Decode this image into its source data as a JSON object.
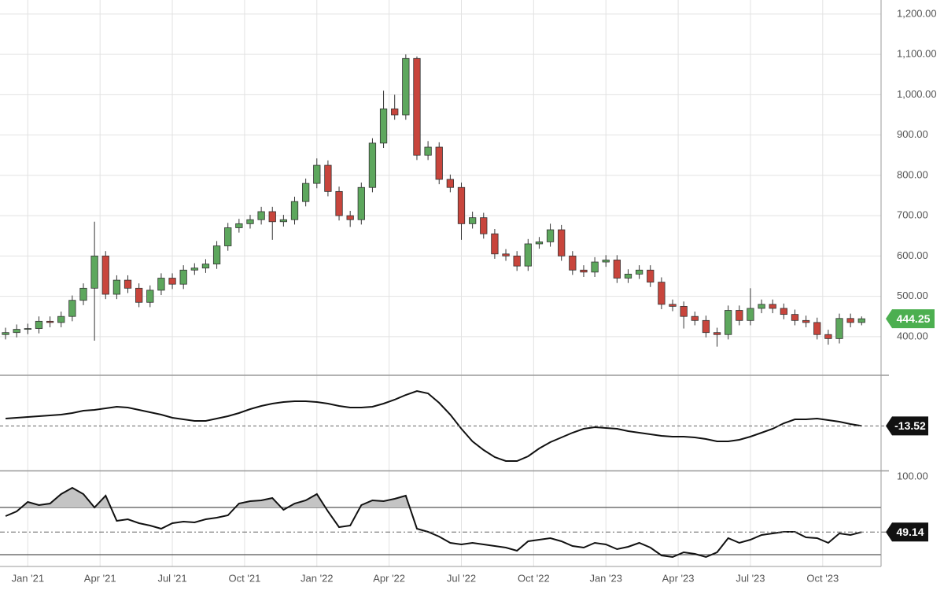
{
  "chart_data": [
    {
      "type": "candlestick",
      "x": [
        -4,
        -2,
        0,
        2,
        4,
        6,
        8,
        10,
        12,
        14,
        16,
        18,
        20,
        22,
        24,
        26,
        28,
        30,
        32,
        34,
        36,
        38,
        40,
        42,
        44,
        46,
        48,
        50,
        52,
        54,
        56,
        58,
        60,
        62,
        64,
        66,
        68,
        70,
        72,
        74,
        76,
        78,
        80,
        82,
        84,
        86,
        88,
        90,
        92,
        94,
        96,
        98,
        100,
        102,
        104,
        106,
        108,
        110,
        112,
        114,
        116,
        118,
        120,
        122,
        124,
        126,
        128,
        130,
        132,
        134,
        136,
        138,
        140,
        142,
        144,
        146,
        148,
        150
      ],
      "open": [
        405,
        410,
        418,
        420,
        438,
        435,
        450,
        490,
        520,
        600,
        505,
        540,
        520,
        485,
        515,
        545,
        530,
        565,
        570,
        580,
        625,
        670,
        680,
        690,
        710,
        685,
        690,
        735,
        780,
        825,
        760,
        700,
        690,
        770,
        880,
        965,
        950,
        1090,
        850,
        870,
        790,
        770,
        680,
        695,
        655,
        605,
        600,
        575,
        630,
        635,
        665,
        600,
        565,
        560,
        585,
        590,
        545,
        555,
        565,
        535,
        480,
        475,
        450,
        440,
        410,
        405,
        465,
        440,
        470,
        480,
        470,
        455,
        440,
        435,
        405,
        395,
        445,
        435
      ],
      "high": [
        422,
        430,
        432,
        450,
        450,
        462,
        502,
        532,
        685,
        612,
        552,
        552,
        532,
        527,
        557,
        557,
        577,
        582,
        592,
        637,
        682,
        692,
        702,
        722,
        722,
        702,
        747,
        792,
        842,
        837,
        772,
        712,
        782,
        892,
        1010,
        1000,
        1100,
        1095,
        885,
        882,
        802,
        782,
        710,
        707,
        667,
        617,
        612,
        642,
        647,
        680,
        677,
        612,
        577,
        597,
        602,
        602,
        567,
        577,
        577,
        547,
        492,
        487,
        462,
        452,
        422,
        477,
        477,
        520,
        492,
        492,
        482,
        467,
        452,
        447,
        417,
        457,
        457,
        450
      ],
      "low": [
        393,
        398,
        406,
        408,
        423,
        423,
        438,
        478,
        390,
        493,
        493,
        508,
        473,
        473,
        503,
        518,
        518,
        553,
        558,
        568,
        613,
        658,
        668,
        678,
        640,
        673,
        678,
        723,
        768,
        748,
        688,
        672,
        678,
        758,
        868,
        938,
        938,
        838,
        838,
        778,
        758,
        640,
        668,
        643,
        593,
        588,
        563,
        563,
        618,
        623,
        588,
        553,
        548,
        548,
        573,
        533,
        533,
        543,
        523,
        468,
        463,
        420,
        428,
        398,
        375,
        393,
        428,
        428,
        458,
        458,
        443,
        428,
        423,
        393,
        380,
        383,
        423,
        428
      ],
      "close": [
        410,
        418,
        420,
        438,
        435,
        450,
        490,
        520,
        600,
        505,
        540,
        520,
        485,
        515,
        545,
        530,
        565,
        570,
        580,
        625,
        670,
        680,
        690,
        710,
        685,
        690,
        735,
        780,
        825,
        760,
        700,
        690,
        770,
        880,
        965,
        950,
        1090,
        850,
        870,
        790,
        770,
        680,
        695,
        655,
        605,
        600,
        575,
        630,
        635,
        665,
        600,
        565,
        560,
        585,
        590,
        545,
        555,
        565,
        535,
        480,
        475,
        450,
        440,
        410,
        405,
        465,
        440,
        470,
        480,
        470,
        455,
        440,
        435,
        405,
        395,
        445,
        435,
        444.25
      ],
      "color_up": "#5da75d",
      "color_down": "#c8453c",
      "tag_color": "#4caf50",
      "ylim": [
        304,
        1235
      ],
      "yticks": [
        {
          "value": 400,
          "label": "400.00"
        },
        {
          "value": 500,
          "label": "500.00"
        },
        {
          "value": 600,
          "label": "600.00"
        },
        {
          "value": 700,
          "label": "700.00"
        },
        {
          "value": 800,
          "label": "800.00"
        },
        {
          "value": 900,
          "label": "900.00"
        },
        {
          "value": 1000,
          "label": "1,000.00"
        },
        {
          "value": 1100,
          "label": "1,100.00"
        },
        {
          "value": 1200,
          "label": "1,200.00"
        }
      ],
      "xlim": [
        -5,
        153.5
      ],
      "xticks": [
        {
          "value": 0,
          "label": "Jan '21"
        },
        {
          "value": 13,
          "label": "Apr '21"
        },
        {
          "value": 26,
          "label": "Jul '21"
        },
        {
          "value": 39,
          "label": "Oct '21"
        },
        {
          "value": 52,
          "label": "Jan '22"
        },
        {
          "value": 65,
          "label": "Apr '22"
        },
        {
          "value": 78,
          "label": "Jul '22"
        },
        {
          "value": 91,
          "label": "Oct '22"
        },
        {
          "value": 104,
          "label": "Jan '23"
        },
        {
          "value": 117,
          "label": "Apr '23"
        },
        {
          "value": 130,
          "label": "Jul '23"
        },
        {
          "value": 143,
          "label": "Oct '23"
        }
      ],
      "grid": true
    },
    {
      "type": "line",
      "color": "#111111",
      "values": [
        10,
        12.5,
        15,
        17.5,
        20,
        22.5,
        27.5,
        35,
        37.5,
        42.5,
        47.5,
        45,
        37.5,
        30,
        22.5,
        12.5,
        7.5,
        2.5,
        2.5,
        10,
        17.5,
        27.5,
        40,
        50,
        57.5,
        62.5,
        65,
        65,
        62.5,
        57.5,
        50,
        45,
        45,
        47.5,
        57.5,
        70,
        85,
        97.5,
        90,
        60,
        22.5,
        -22.5,
        -62.5,
        -90,
        -112.5,
        -125,
        -125,
        -110,
        -85,
        -65,
        -50,
        -35,
        -22.5,
        -17.5,
        -20,
        -22.5,
        -30,
        -35,
        -40,
        -45,
        -47.5,
        -47.5,
        -50,
        -55,
        -62.5,
        -62.5,
        -57.5,
        -47.5,
        -35,
        -22.5,
        -5,
        7.5,
        7.5,
        10,
        5,
        0,
        -7.5,
        -13.52
      ],
      "ylim": [
        -155,
        145
      ]
    },
    {
      "type": "line",
      "color": "#111111",
      "fill_color": "#c4c4c4",
      "values": [
        62.7,
        66.7,
        74.7,
        72,
        73.3,
        81.3,
        86.7,
        81.3,
        70,
        80,
        58.7,
        60,
        56.7,
        54.7,
        52,
        56.7,
        58,
        57.3,
        60,
        61.3,
        63.3,
        73.3,
        75.3,
        76,
        78,
        68,
        73.3,
        76,
        81.3,
        66.7,
        53.3,
        54.7,
        72,
        76,
        75.3,
        77.3,
        80,
        52,
        49.3,
        45.3,
        40,
        38.7,
        40,
        38.7,
        37.3,
        36,
        33.3,
        41.3,
        42.7,
        44,
        41.3,
        37.3,
        36,
        40,
        38.7,
        34.7,
        36.7,
        40,
        36,
        29.3,
        28,
        32,
        30.7,
        28,
        32,
        44,
        40,
        42.7,
        46.7,
        48,
        49.3,
        49.3,
        44.7,
        44,
        40,
        48,
        46.7,
        49.14
      ],
      "ylim": [
        20,
        100
      ],
      "yticks": [
        {
          "value": 100,
          "label": "100.00"
        }
      ],
      "levels": [
        70,
        30
      ]
    }
  ]
}
